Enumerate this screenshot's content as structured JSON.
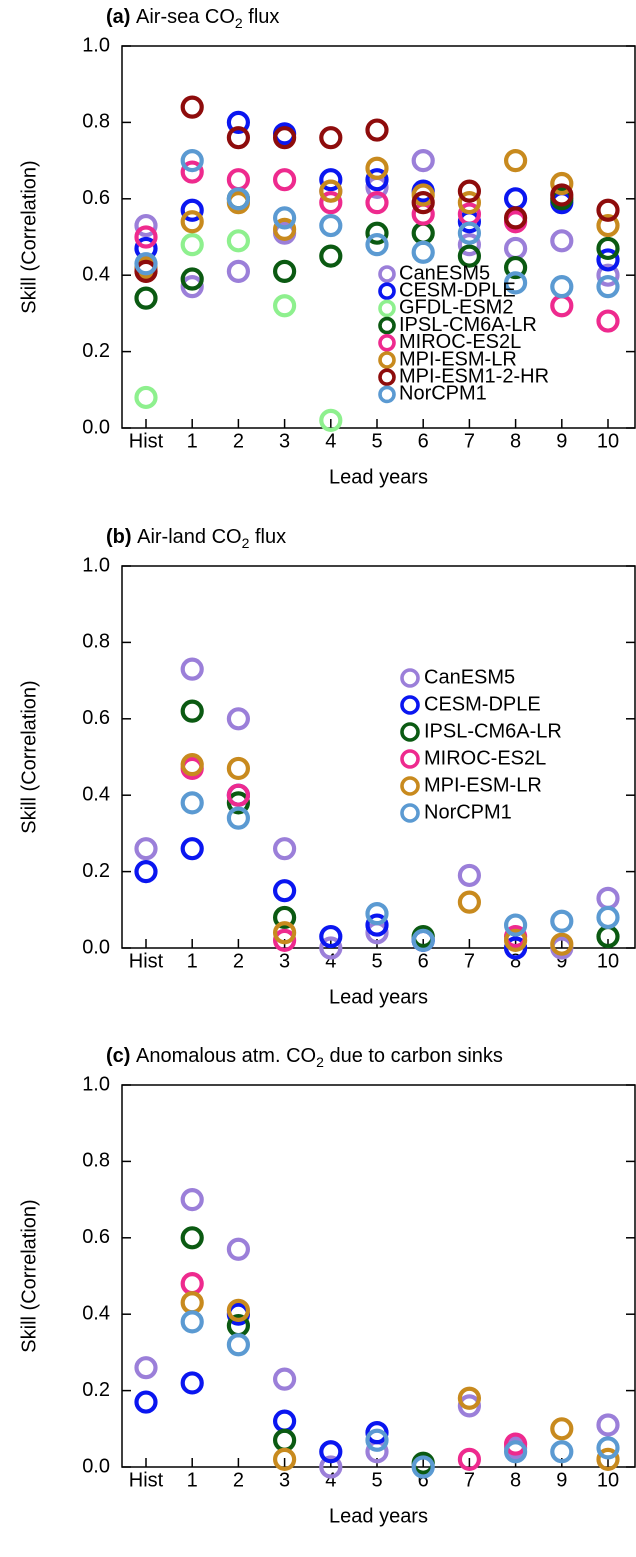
{
  "chart_data": [
    {
      "type": "scatter",
      "panel_label": "(a)",
      "title": [
        "Air-sea CO",
        "2",
        " flux"
      ],
      "xlabel": "Lead years",
      "ylabel": "Skill (Correlation)",
      "categories": [
        "Hist",
        "1",
        "2",
        "3",
        "4",
        "5",
        "6",
        "7",
        "8",
        "9",
        "10"
      ],
      "ylim": [
        0,
        1
      ],
      "yticks": [
        {
          "value": 0,
          "label": "0.0"
        },
        0.2,
        0.4,
        0.6,
        0.8,
        {
          "value": 1,
          "label": "1.0"
        }
      ],
      "legend": "center-right",
      "series": [
        {
          "name": "CanESM5",
          "color": "#9b7fd9",
          "values": [
            0.53,
            0.37,
            0.41,
            0.51,
            0.62,
            0.63,
            0.7,
            0.48,
            0.47,
            0.49,
            0.4
          ]
        },
        {
          "name": "CESM-DPLE",
          "color": "#0a16f0",
          "values": [
            0.47,
            0.57,
            0.8,
            0.77,
            0.65,
            0.65,
            0.62,
            0.54,
            0.6,
            0.59,
            0.44
          ]
        },
        {
          "name": "GFDL-ESM2",
          "color": "#8ef08e",
          "values": [
            0.08,
            0.48,
            0.49,
            0.32,
            0.02,
            null,
            null,
            null,
            null,
            null,
            null
          ]
        },
        {
          "name": "IPSL-CM6A-LR",
          "color": "#0b5a12",
          "values": [
            0.34,
            0.39,
            0.6,
            0.41,
            0.45,
            0.51,
            0.51,
            0.45,
            0.42,
            0.6,
            0.47
          ]
        },
        {
          "name": "MIROC-ES2L",
          "color": "#ee2a8e",
          "values": [
            0.5,
            0.67,
            0.65,
            0.65,
            0.59,
            0.59,
            0.56,
            0.56,
            0.54,
            0.32,
            0.28
          ]
        },
        {
          "name": "MPI-ESM-LR",
          "color": "#c88a1e",
          "values": [
            0.42,
            0.54,
            0.59,
            0.52,
            0.62,
            0.68,
            0.61,
            0.59,
            0.7,
            0.64,
            0.53
          ]
        },
        {
          "name": "MPI-ESM1-2-HR",
          "color": "#8e0c0c",
          "values": [
            0.41,
            0.84,
            0.76,
            0.76,
            0.76,
            0.78,
            0.59,
            0.62,
            0.55,
            0.61,
            0.57
          ]
        },
        {
          "name": "NorCPM1",
          "color": "#5b9ad2",
          "values": [
            0.43,
            0.7,
            0.6,
            0.55,
            0.53,
            0.48,
            0.46,
            0.51,
            0.38,
            0.37,
            0.37
          ]
        }
      ]
    },
    {
      "type": "scatter",
      "panel_label": "(b)",
      "title": [
        "Air-land CO",
        "2",
        " flux"
      ],
      "xlabel": "Lead years",
      "ylabel": "Skill (Correlation)",
      "categories": [
        "Hist",
        "1",
        "2",
        "3",
        "4",
        "5",
        "6",
        "7",
        "8",
        "9",
        "10"
      ],
      "ylim": [
        0,
        1
      ],
      "yticks": [
        {
          "value": 0,
          "label": "0.0"
        },
        0.2,
        0.4,
        0.6,
        0.8,
        {
          "value": 1,
          "label": "1.0"
        }
      ],
      "legend": "upper-right",
      "series": [
        {
          "name": "CanESM5",
          "color": "#9b7fd9",
          "values": [
            0.26,
            0.73,
            0.6,
            0.26,
            0.0,
            0.04,
            0.02,
            0.19,
            0.0,
            0.0,
            0.13
          ]
        },
        {
          "name": "CESM-DPLE",
          "color": "#0a16f0",
          "values": [
            0.2,
            0.26,
            0.4,
            0.15,
            0.03,
            0.06,
            0.02,
            null,
            0.0,
            null,
            null
          ]
        },
        {
          "name": "IPSL-CM6A-LR",
          "color": "#0b5a12",
          "values": [
            null,
            0.62,
            0.38,
            0.08,
            null,
            null,
            0.03,
            null,
            null,
            null,
            0.03
          ]
        },
        {
          "name": "MIROC-ES2L",
          "color": "#ee2a8e",
          "values": [
            null,
            0.47,
            0.4,
            0.02,
            null,
            null,
            null,
            null,
            0.03,
            null,
            null
          ]
        },
        {
          "name": "MPI-ESM-LR",
          "color": "#c88a1e",
          "values": [
            null,
            0.48,
            0.47,
            0.04,
            null,
            null,
            null,
            0.12,
            0.02,
            0.01,
            null
          ]
        },
        {
          "name": "NorCPM1",
          "color": "#5b9ad2",
          "values": [
            null,
            0.38,
            0.34,
            null,
            null,
            0.09,
            0.02,
            null,
            0.06,
            0.07,
            0.08
          ]
        }
      ]
    },
    {
      "type": "scatter",
      "panel_label": "(c)",
      "title": [
        "Anomalous atm. CO",
        "2",
        " due to carbon sinks"
      ],
      "xlabel": "Lead years",
      "ylabel": "Skill (Correlation)",
      "categories": [
        "Hist",
        "1",
        "2",
        "3",
        "4",
        "5",
        "6",
        "7",
        "8",
        "9",
        "10"
      ],
      "ylim": [
        0,
        1
      ],
      "yticks": [
        {
          "value": 0,
          "label": "0.0"
        },
        0.2,
        0.4,
        0.6,
        0.8,
        {
          "value": 1,
          "label": "1.0"
        }
      ],
      "series": [
        {
          "color": "#9b7fd9",
          "values": [
            0.26,
            0.7,
            0.57,
            0.23,
            0.0,
            0.04,
            null,
            0.16,
            0.05,
            null,
            0.11
          ]
        },
        {
          "color": "#0a16f0",
          "values": [
            0.17,
            0.22,
            0.4,
            0.12,
            0.04,
            0.09,
            null,
            null,
            null,
            null,
            null
          ]
        },
        {
          "color": "#0b5a12",
          "values": [
            null,
            0.6,
            0.37,
            0.07,
            null,
            null,
            0.01,
            null,
            null,
            null,
            null
          ]
        },
        {
          "color": "#ee2a8e",
          "values": [
            null,
            0.48,
            null,
            null,
            null,
            null,
            null,
            0.02,
            0.06,
            null,
            null
          ]
        },
        {
          "color": "#c88a1e",
          "values": [
            null,
            0.43,
            0.41,
            0.02,
            null,
            null,
            null,
            0.18,
            null,
            0.1,
            0.02
          ]
        },
        {
          "color": "#5b9ad2",
          "values": [
            null,
            0.38,
            0.32,
            null,
            null,
            0.07,
            0.0,
            null,
            0.04,
            0.04,
            0.05
          ]
        }
      ]
    }
  ]
}
